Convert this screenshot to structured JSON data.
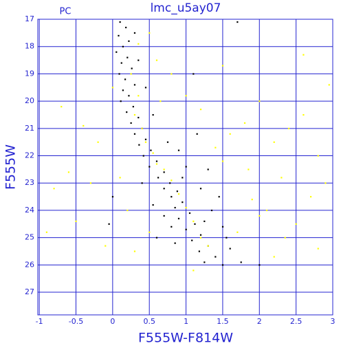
{
  "chart_data": {
    "type": "scatter",
    "title": "lmc_u5ay07",
    "annotation": "PC",
    "x_label": "F555W-F814W",
    "y_label": "F555W",
    "xlim": [
      -1.02,
      3
    ],
    "ylim": [
      27.83,
      17
    ],
    "xticks": [
      -1,
      -0.5,
      0,
      0.5,
      1,
      1.5,
      2,
      2.5,
      3
    ],
    "yticks": [
      17,
      18,
      19,
      20,
      21,
      22,
      23,
      24,
      25,
      26,
      27
    ],
    "grid": true,
    "series": [
      {
        "color": "#000000",
        "x": [
          0.1,
          0.18,
          0.08,
          0.22,
          0.14,
          0.05,
          0.2,
          0.12,
          0.26,
          0.09,
          0.17,
          0.3,
          0.14,
          0.22,
          0.11,
          0.28,
          0.19,
          0.35,
          0.25,
          0.4,
          0.3,
          0.45,
          0.36,
          0.52,
          0.42,
          0.6,
          0.5,
          0.7,
          0.62,
          0.78,
          0.7,
          0.88,
          0.8,
          0.95,
          0.85,
          1.05,
          0.9,
          1.12,
          1.0,
          1.2,
          1.08,
          1.3,
          1.18,
          1.4,
          1.25,
          1.5,
          2.0,
          1.75,
          0.95,
          1.2,
          1.35,
          1.5,
          0.7,
          0.6,
          0.85,
          1.6,
          1.3,
          0.9,
          1.15,
          0.55,
          1.1,
          0.3,
          0.35,
          1.7,
          0.45,
          0.75,
          -0.05,
          0.0,
          1.0,
          0.4,
          0.55,
          1.45,
          1.25,
          0.8,
          1.55
        ],
        "values": [
          17.1,
          17.3,
          17.6,
          17.8,
          18.0,
          18.2,
          18.4,
          18.6,
          18.8,
          19.0,
          19.2,
          19.4,
          19.6,
          19.8,
          20.0,
          20.2,
          20.4,
          20.6,
          20.8,
          21.0,
          21.2,
          21.4,
          21.6,
          21.8,
          22.0,
          22.2,
          22.4,
          22.6,
          22.8,
          23.0,
          23.2,
          23.3,
          23.5,
          23.7,
          23.9,
          24.1,
          24.3,
          24.5,
          24.7,
          24.9,
          25.1,
          25.3,
          25.5,
          25.7,
          25.9,
          26.0,
          26.0,
          25.9,
          22.8,
          23.2,
          24.0,
          24.6,
          24.2,
          25.0,
          25.2,
          25.4,
          22.5,
          21.8,
          21.2,
          20.5,
          19.0,
          17.5,
          18.5,
          17.1,
          19.5,
          21.5,
          24.5,
          23.5,
          22.4,
          23.0,
          23.8,
          23.5,
          24.4,
          24.6,
          25.0
        ]
      },
      {
        "color": "#ffff00",
        "x": [
          0.25,
          0.35,
          0.3,
          0.4,
          0.45,
          0.55,
          0.6,
          0.7,
          0.8,
          0.9,
          1.0,
          1.1,
          1.2,
          1.3,
          -0.6,
          -0.8,
          -0.5,
          -0.9,
          -0.3,
          -0.4,
          -0.7,
          -0.2,
          0.0,
          -0.1,
          0.1,
          0.2,
          0.3,
          0.5,
          1.6,
          1.8,
          2.0,
          2.2,
          2.4,
          2.6,
          2.8,
          2.7,
          2.5,
          2.9,
          2.3,
          2.1,
          1.9,
          1.7,
          1.5,
          1.4,
          1.2,
          1.0,
          0.8,
          0.6,
          0.65,
          2.0,
          2.35,
          1.85,
          2.95,
          2.6,
          1.5,
          0.5,
          0.35,
          2.8,
          2.2,
          1.1
        ],
        "values": [
          19.0,
          19.8,
          20.5,
          21.0,
          21.5,
          21.9,
          22.3,
          22.5,
          22.9,
          23.4,
          23.9,
          24.4,
          25.0,
          25.3,
          22.6,
          23.2,
          24.4,
          24.8,
          23.0,
          20.9,
          20.2,
          21.5,
          19.5,
          25.3,
          22.8,
          24.0,
          25.5,
          24.8,
          21.2,
          20.8,
          20.0,
          21.5,
          21.0,
          20.5,
          22.0,
          23.5,
          24.5,
          23.0,
          22.8,
          24.0,
          23.6,
          24.8,
          22.2,
          21.7,
          20.3,
          19.8,
          19.0,
          18.5,
          20.0,
          24.2,
          25.0,
          22.5,
          19.4,
          18.3,
          18.7,
          17.5,
          17.9,
          25.4,
          25.7,
          26.2
        ]
      }
    ]
  }
}
